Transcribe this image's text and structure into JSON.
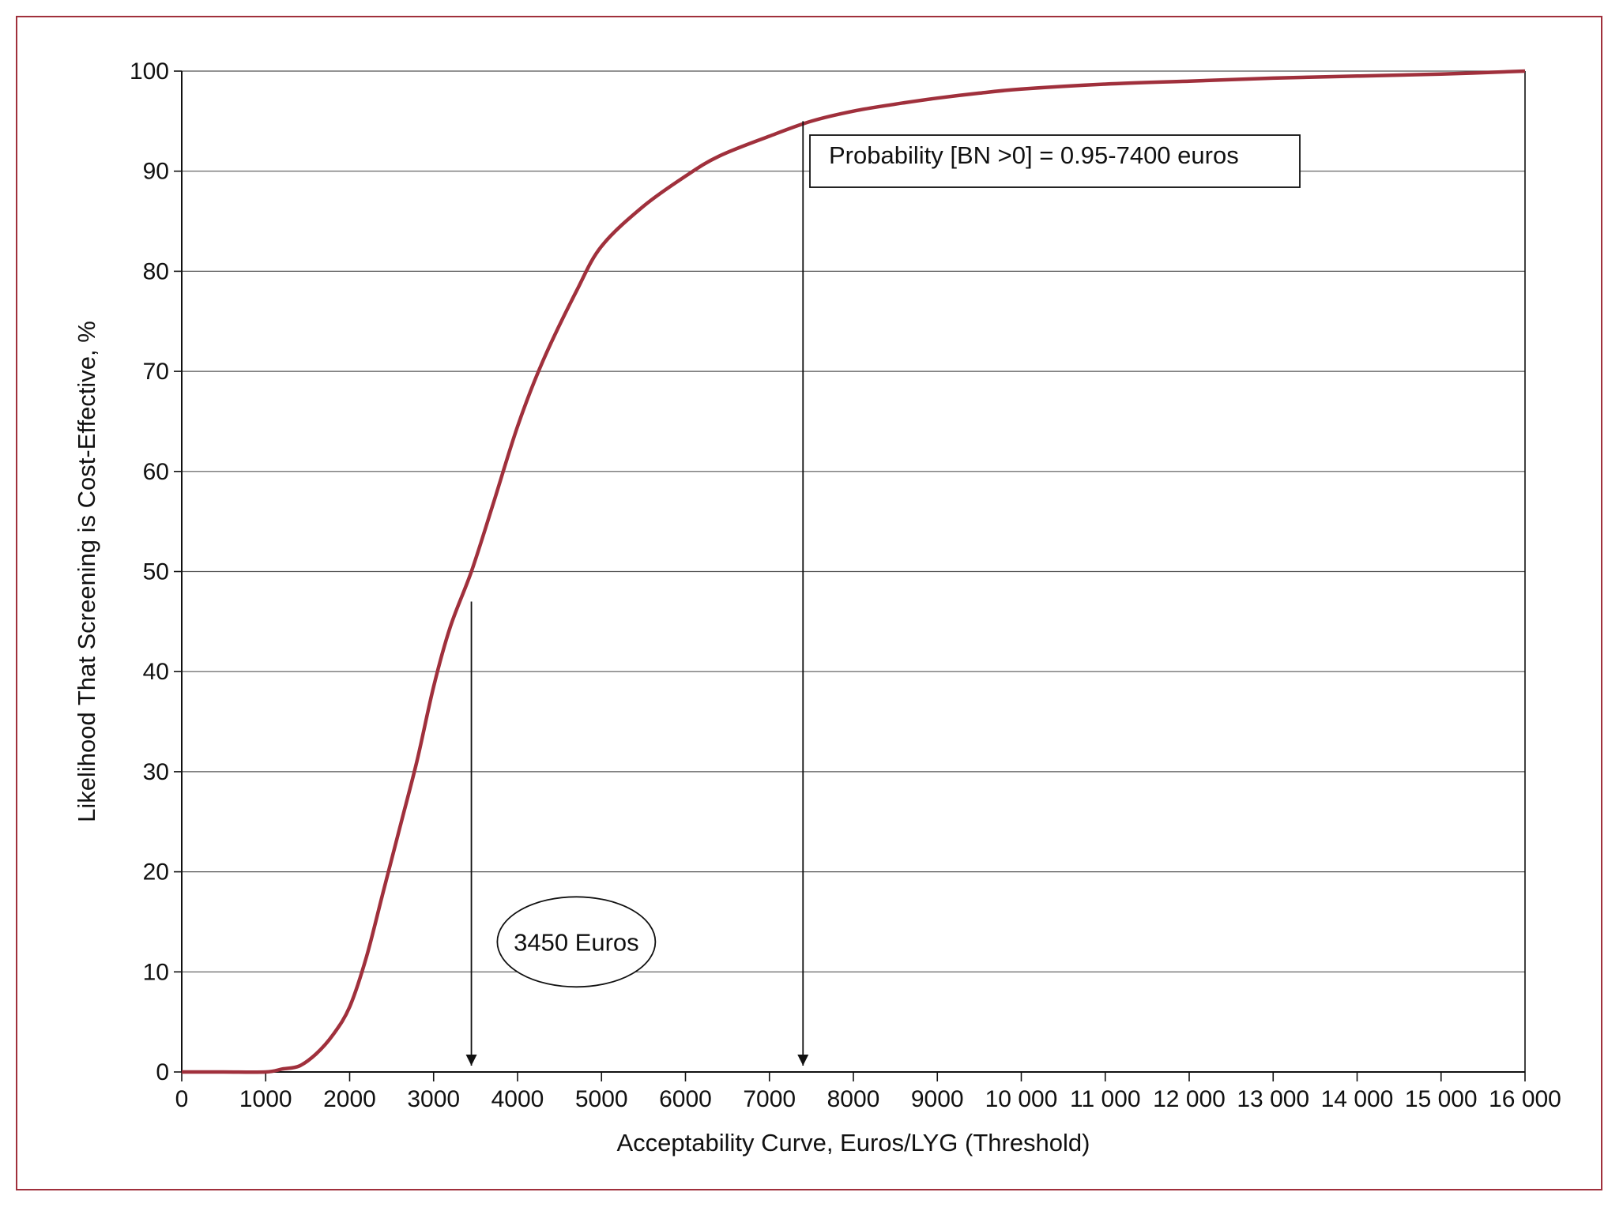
{
  "chart_data": {
    "type": "line",
    "title": "",
    "xlabel": "Acceptability Curve, Euros/LYG (Threshold)",
    "ylabel": "Likelihood That Screening is Cost-Effective, %",
    "xlim": [
      0,
      16000
    ],
    "ylim": [
      0,
      100
    ],
    "x_ticks": [
      0,
      1000,
      2000,
      3000,
      4000,
      5000,
      6000,
      7000,
      8000,
      9000,
      10000,
      11000,
      12000,
      13000,
      14000,
      15000,
      16000
    ],
    "x_tick_labels": [
      "0",
      "1000",
      "2000",
      "3000",
      "4000",
      "5000",
      "6000",
      "7000",
      "8000",
      "9000",
      "10 000",
      "11 000",
      "12 000",
      "13 000",
      "14 000",
      "15 000",
      "16 000"
    ],
    "y_ticks": [
      0,
      10,
      20,
      30,
      40,
      50,
      60,
      70,
      80,
      90,
      100
    ],
    "y_tick_labels": [
      "0",
      "10",
      "20",
      "30",
      "40",
      "50",
      "60",
      "70",
      "80",
      "90",
      "100"
    ],
    "grid": "horizontal",
    "series": [
      {
        "color": "#a0303c",
        "x": [
          0,
          500,
          1000,
          1200,
          1400,
          1600,
          1800,
          2000,
          2200,
          2400,
          2600,
          2800,
          3000,
          3200,
          3450,
          3700,
          4000,
          4300,
          4700,
          5000,
          5500,
          6000,
          6400,
          7000,
          7500,
          8000,
          8500,
          9000,
          9500,
          10000,
          11000,
          12000,
          13000,
          14000,
          15000,
          16000
        ],
        "y": [
          0,
          0,
          0,
          0.3,
          0.6,
          1.8,
          3.7,
          6.5,
          11.5,
          18.0,
          24.5,
          31.0,
          38.5,
          44.5,
          50.0,
          56.5,
          64.5,
          71.0,
          78.0,
          82.5,
          86.5,
          89.5,
          91.5,
          93.5,
          95.0,
          96.0,
          96.7,
          97.3,
          97.8,
          98.2,
          98.7,
          99.0,
          99.3,
          99.5,
          99.7,
          100
        ]
      }
    ],
    "annotations": [
      {
        "type": "arrow",
        "x": 3450,
        "from_y": 47,
        "to_y": 0
      },
      {
        "type": "arrow",
        "x": 7400,
        "from_y": 95,
        "to_y": 0
      },
      {
        "type": "ellipse-label",
        "text": "3450 Euros",
        "x": 4700,
        "y": 13
      },
      {
        "type": "box-label",
        "text": "Probability [BN >0] = 0.95-7400 euros",
        "x": 10400,
        "y": 91
      }
    ]
  }
}
